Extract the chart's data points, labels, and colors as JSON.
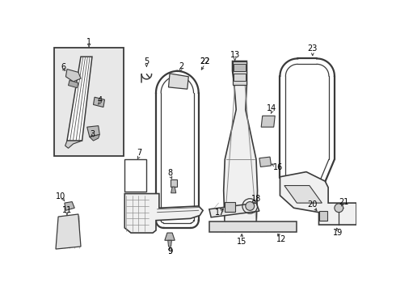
{
  "bg_color": "#ffffff",
  "line_color": "#3a3a3a",
  "label_color": "#000000",
  "fig_width": 4.9,
  "fig_height": 3.6,
  "dpi": 100
}
